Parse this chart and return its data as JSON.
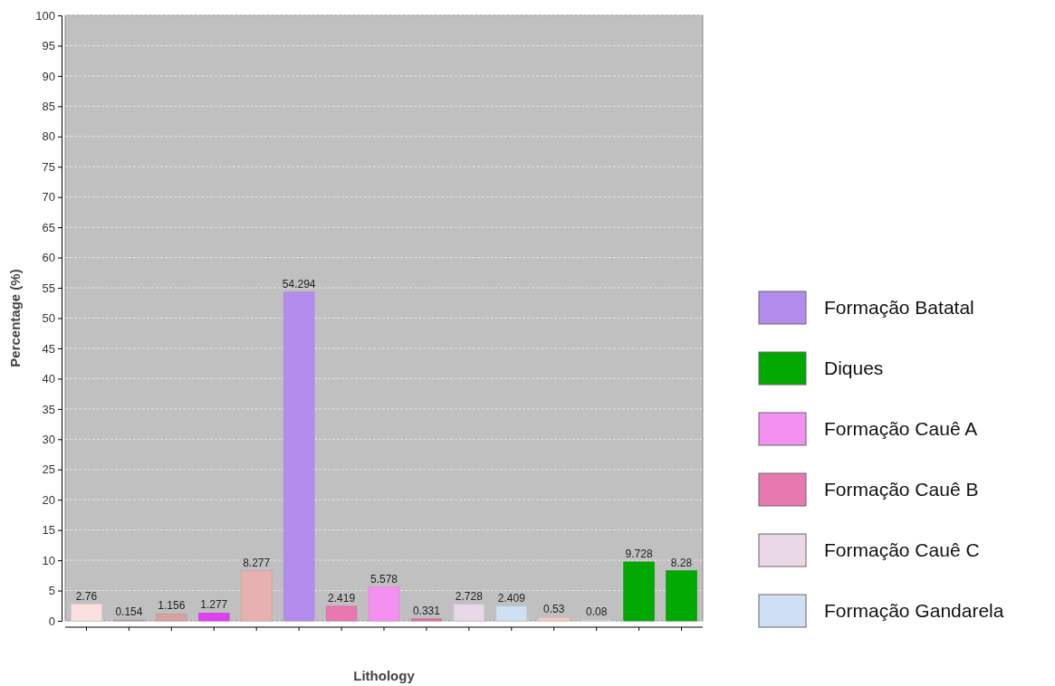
{
  "chart_data": {
    "type": "bar",
    "xlabel": "Lithology",
    "ylabel": "Percentage (%)",
    "categories": [
      null,
      null,
      null,
      null,
      null,
      null,
      null,
      null,
      null,
      null,
      null,
      null,
      null,
      null,
      null
    ],
    "series": [
      {
        "name": "Formação Batatal",
        "color": "#b48cee",
        "values": [
          null,
          null,
          null,
          null,
          null,
          54.294,
          null,
          null,
          null,
          null,
          null,
          null,
          null,
          null,
          null
        ]
      },
      {
        "name": "Diques",
        "color": "#00a800",
        "values": [
          null,
          null,
          null,
          null,
          null,
          null,
          null,
          null,
          null,
          null,
          null,
          null,
          null,
          9.728,
          8.28
        ]
      },
      {
        "name": "Formação Cauê A",
        "color": "#f490f0",
        "values": [
          null,
          null,
          null,
          null,
          null,
          null,
          null,
          5.578,
          null,
          null,
          null,
          null,
          null,
          null,
          null
        ]
      },
      {
        "name": "Formação Cauê B",
        "color": "#e878b0",
        "values": [
          null,
          null,
          null,
          null,
          null,
          null,
          2.419,
          null,
          null,
          null,
          null,
          null,
          null,
          null,
          null
        ]
      },
      {
        "name": "Formação Cauê C",
        "color": "#e8d8e8",
        "values": [
          null,
          null,
          null,
          null,
          null,
          null,
          null,
          null,
          null,
          2.728,
          null,
          null,
          null,
          null,
          null
        ]
      },
      {
        "name": "Formação Gandarela",
        "color": "#d0e0f4",
        "values": [
          null,
          null,
          null,
          null,
          null,
          null,
          null,
          null,
          null,
          null,
          2.409,
          null,
          null,
          null,
          null
        ]
      },
      {
        "color": "#fbe0e0",
        "values": [
          2.76,
          null,
          null,
          null,
          null,
          null,
          null,
          null,
          null,
          null,
          null,
          null,
          null,
          null,
          null
        ]
      },
      {
        "color": "#c8a0a0",
        "values": [
          null,
          0.154,
          null,
          null,
          null,
          null,
          null,
          null,
          null,
          null,
          null,
          null,
          null,
          null,
          null
        ]
      },
      {
        "color": "#d8a0a0",
        "values": [
          null,
          null,
          1.156,
          null,
          null,
          null,
          null,
          null,
          null,
          null,
          null,
          null,
          null,
          null,
          null
        ]
      },
      {
        "color": "#e040f0",
        "values": [
          null,
          null,
          null,
          1.277,
          null,
          null,
          null,
          null,
          null,
          null,
          null,
          null,
          null,
          null,
          null
        ]
      },
      {
        "color": "#e8b0b0",
        "values": [
          null,
          null,
          null,
          null,
          8.277,
          null,
          null,
          null,
          null,
          null,
          null,
          null,
          null,
          null,
          null
        ]
      },
      {
        "color": "#e070a0",
        "values": [
          null,
          null,
          null,
          null,
          null,
          null,
          null,
          null,
          0.331,
          null,
          null,
          null,
          null,
          null,
          null
        ]
      },
      {
        "color": "#f8c8c8",
        "values": [
          null,
          null,
          null,
          null,
          null,
          null,
          null,
          null,
          null,
          null,
          null,
          0.53,
          null,
          null,
          null
        ]
      },
      {
        "color": "#e8e8f0",
        "values": [
          null,
          null,
          null,
          null,
          null,
          null,
          null,
          null,
          null,
          null,
          null,
          null,
          0.08,
          null,
          null
        ]
      }
    ],
    "ylim": [
      0,
      100
    ],
    "yticks": [
      0,
      5,
      10,
      15,
      20,
      25,
      30,
      35,
      40,
      45,
      50,
      55,
      60,
      65,
      70,
      75,
      80,
      85,
      90,
      95,
      100
    ],
    "grid": "y",
    "legend": "right",
    "data_labels": true
  }
}
